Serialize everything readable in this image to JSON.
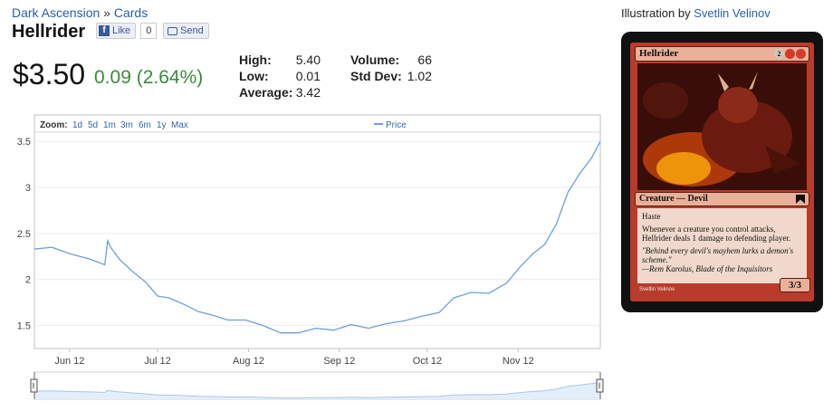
{
  "breadcrumb": {
    "set": "Dark Ascension",
    "sep": "»",
    "section": "Cards"
  },
  "card_title": "Hellrider",
  "facebook": {
    "like_label": "Like",
    "like_count": "0",
    "send_label": "Send"
  },
  "price": {
    "current": "$3.50",
    "change": "0.09 (2.64%)",
    "change_color": "#3c8a3c"
  },
  "stats": {
    "high_label": "High:",
    "high": "5.40",
    "low_label": "Low:",
    "low": "0.01",
    "avg_label": "Average:",
    "avg": "3.42",
    "volume_label": "Volume:",
    "volume": "66",
    "stddev_label": "Std Dev:",
    "stddev": "1.02"
  },
  "chart": {
    "zoom_label": "Zoom:",
    "zoom_options": [
      "1d",
      "5d",
      "1m",
      "3m",
      "6m",
      "1y",
      "Max"
    ],
    "legend": "Price",
    "line_color": "#6f9ed6",
    "navigator_color": "#a9c6e8"
  },
  "chart_data": {
    "type": "line",
    "title": "",
    "xlabel": "",
    "ylabel": "",
    "ylim": [
      1.25,
      3.6
    ],
    "yticks": [
      "1.5",
      "2",
      "2.5",
      "3",
      "3.5"
    ],
    "xticks": [
      "Jun 12",
      "Jul 12",
      "Aug 12",
      "Sep 12",
      "Oct 12",
      "Nov 12"
    ],
    "series": [
      {
        "name": "Price",
        "x": [
          "May 20",
          "May 26",
          "Jun 1",
          "Jun 8",
          "Jun 13",
          "Jun 14",
          "Jun 15",
          "Jun 18",
          "Jun 22",
          "Jun 27",
          "Jul 1",
          "Jul 5",
          "Jul 10",
          "Jul 15",
          "Jul 20",
          "Jul 25",
          "Jul 31",
          "Aug 6",
          "Aug 12",
          "Aug 18",
          "Aug 24",
          "Aug 30",
          "Sep 5",
          "Sep 11",
          "Sep 17",
          "Sep 23",
          "Sep 29",
          "Oct 5",
          "Oct 10",
          "Oct 16",
          "Oct 22",
          "Oct 28",
          "Nov 2",
          "Nov 6",
          "Nov 10",
          "Nov 14",
          "Nov 18",
          "Nov 22",
          "Nov 26",
          "Nov 29"
        ],
        "values": [
          2.33,
          2.35,
          2.28,
          2.22,
          2.16,
          2.42,
          2.35,
          2.22,
          2.1,
          1.97,
          1.82,
          1.8,
          1.73,
          1.65,
          1.61,
          1.56,
          1.56,
          1.5,
          1.42,
          1.42,
          1.47,
          1.45,
          1.51,
          1.47,
          1.52,
          1.55,
          1.6,
          1.64,
          1.8,
          1.86,
          1.85,
          1.96,
          2.15,
          2.28,
          2.38,
          2.6,
          2.95,
          3.15,
          3.32,
          3.5
        ]
      }
    ]
  },
  "illustration": {
    "prefix": "Illustration by",
    "artist": "Svetlin Velinov"
  },
  "mtg_card": {
    "name": "Hellrider",
    "mana": [
      "2",
      "R",
      "R"
    ],
    "type_line": "Creature — Devil",
    "keyword": "Haste",
    "rules_text": "Whenever a creature you control attacks, Hellrider deals 1 damage to defending player.",
    "flavor": "\"Behind every devil's mayhem lurks a demon's scheme.\"",
    "flavor_attrib": "—Rem Karolus, Blade of the Inquisitors",
    "pt": "3/3",
    "artist_line": "Svetlin Velinov"
  }
}
